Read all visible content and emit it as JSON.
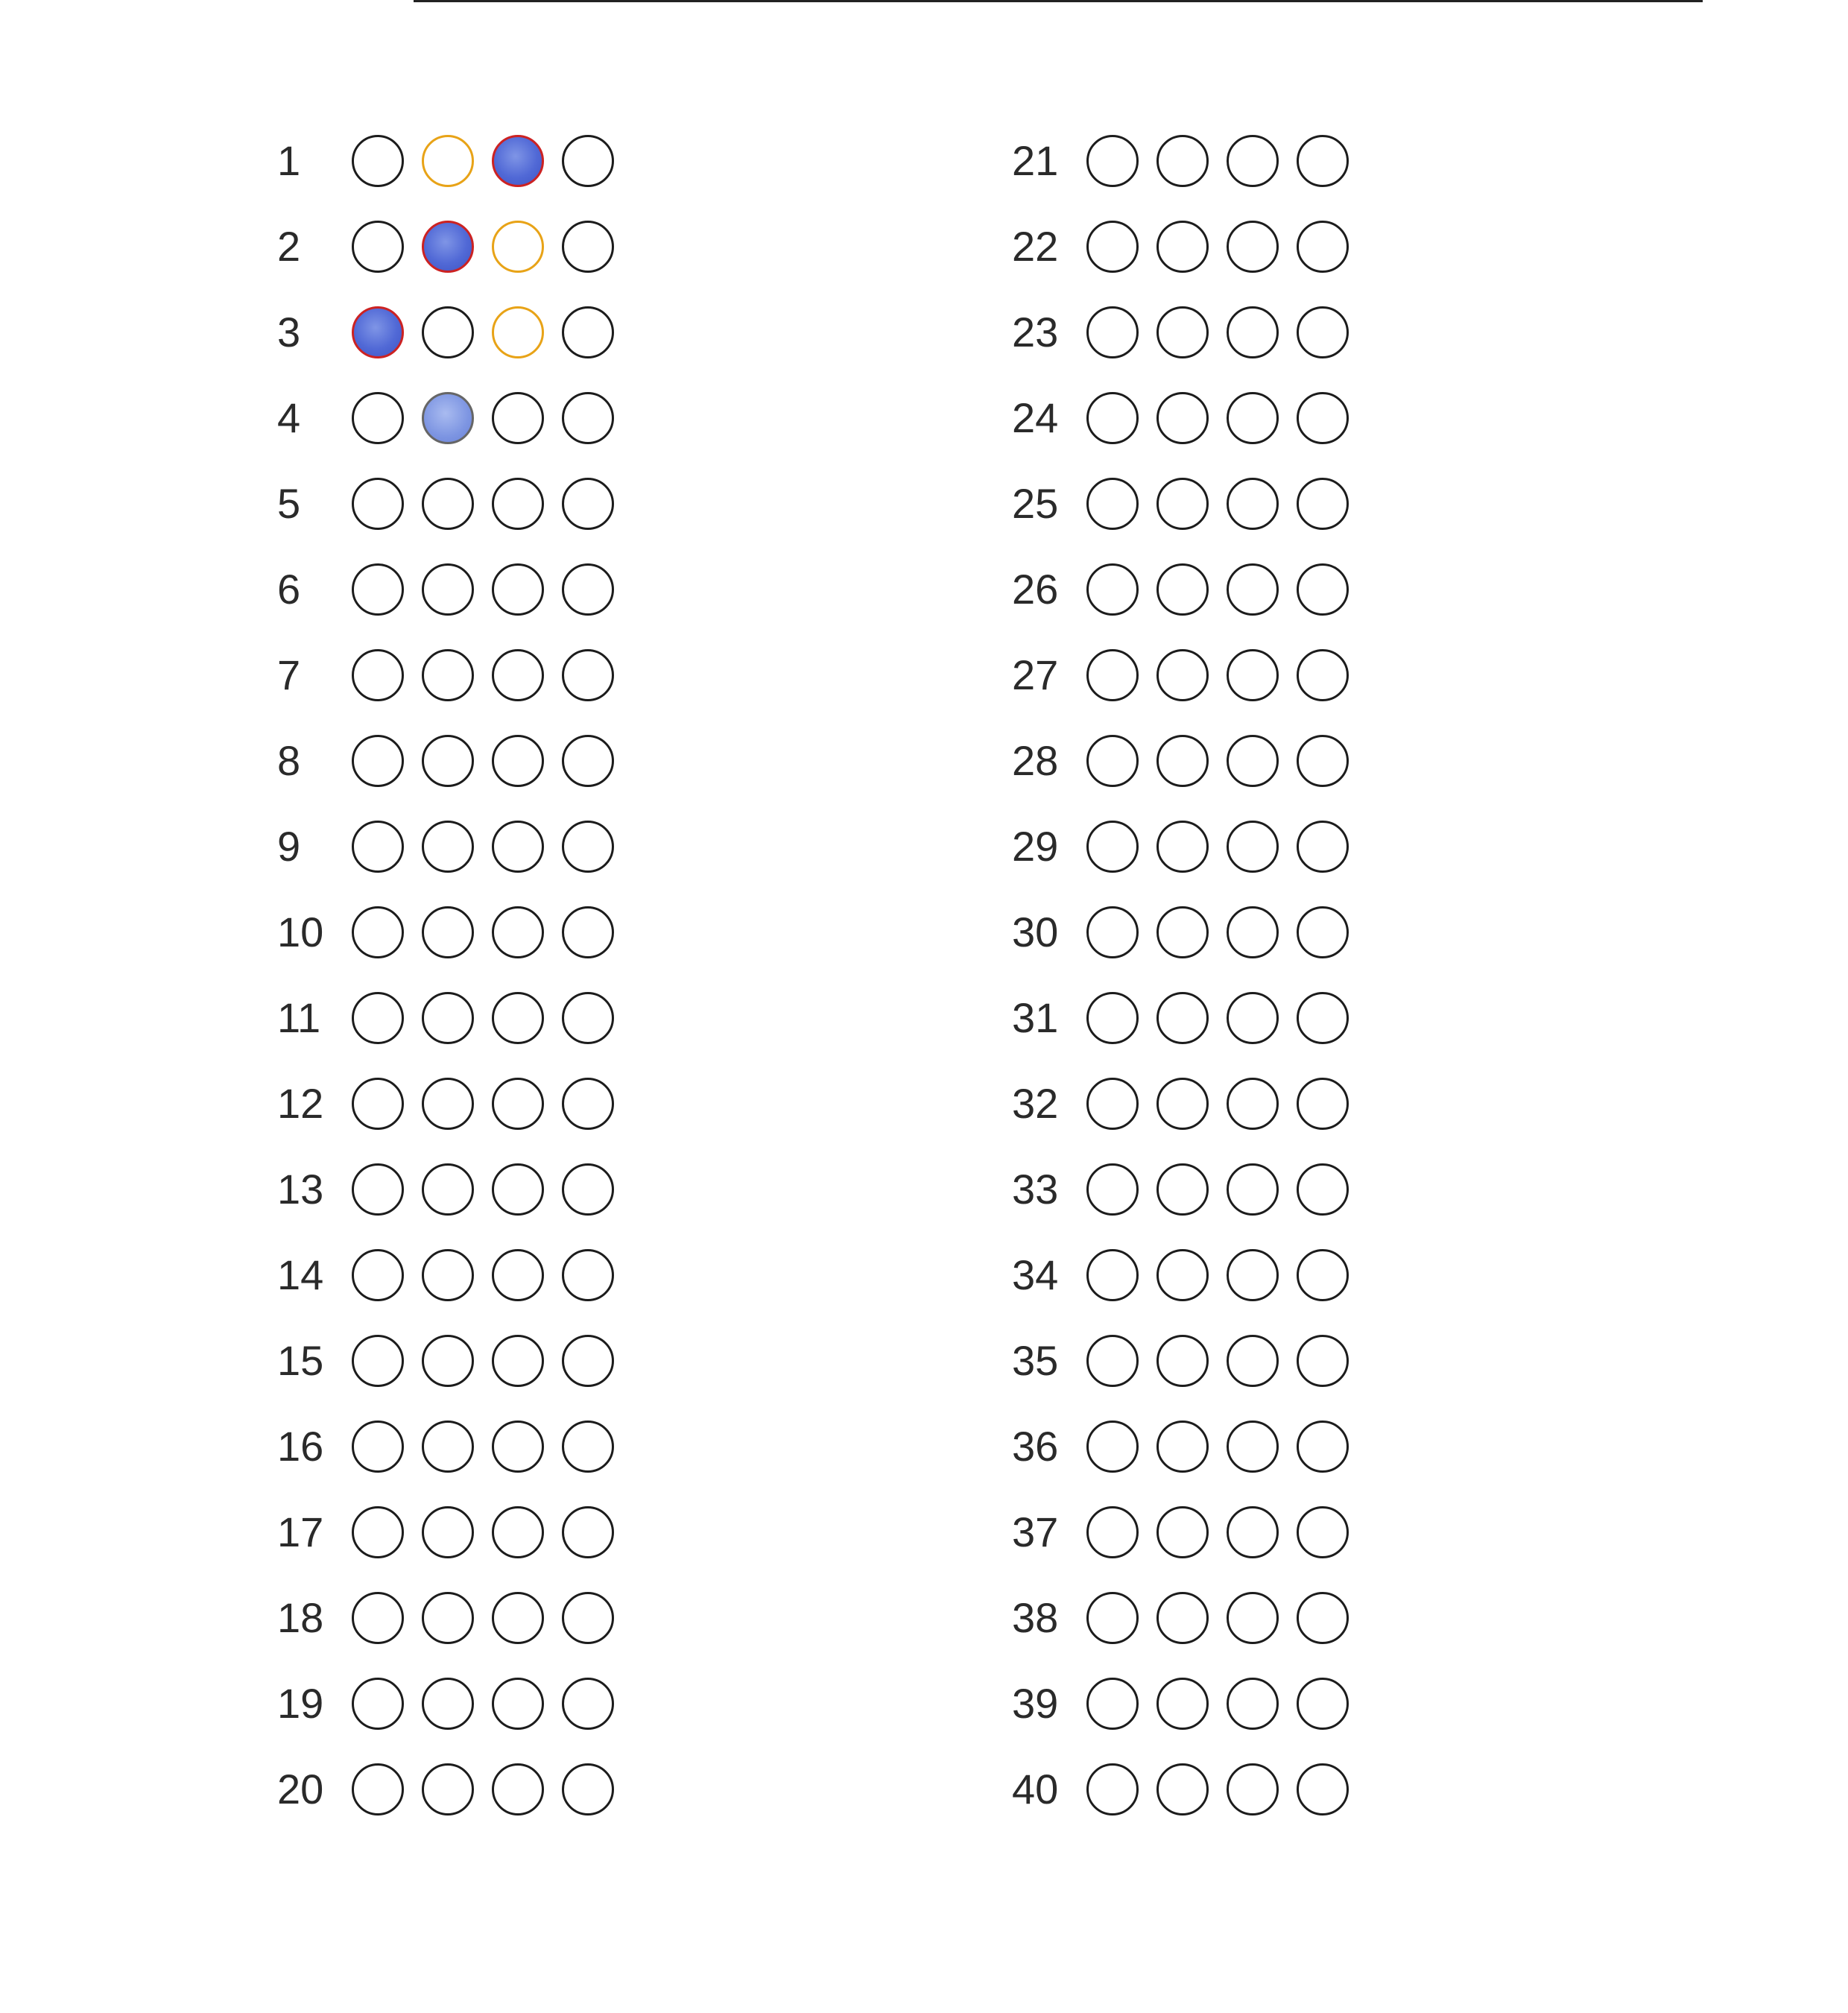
{
  "colors": {
    "ink": "#1c1c1c",
    "fill": "#5169d6",
    "fill_light": "#8aa0e6",
    "correct_mark": "#cc2222",
    "key_mark": "#e8a317"
  },
  "columns": [
    {
      "questions": [
        {
          "number": "1",
          "bubbles": [
            {
              "fill": "none",
              "mark": "none"
            },
            {
              "fill": "none",
              "mark": "key"
            },
            {
              "fill": "filled",
              "mark": "correct"
            },
            {
              "fill": "none",
              "mark": "none"
            }
          ]
        },
        {
          "number": "2",
          "bubbles": [
            {
              "fill": "none",
              "mark": "none"
            },
            {
              "fill": "filled",
              "mark": "correct"
            },
            {
              "fill": "none",
              "mark": "key"
            },
            {
              "fill": "none",
              "mark": "none"
            }
          ]
        },
        {
          "number": "3",
          "bubbles": [
            {
              "fill": "filled",
              "mark": "correct"
            },
            {
              "fill": "none",
              "mark": "none"
            },
            {
              "fill": "none",
              "mark": "key"
            },
            {
              "fill": "none",
              "mark": "none"
            }
          ]
        },
        {
          "number": "4",
          "bubbles": [
            {
              "fill": "none",
              "mark": "none"
            },
            {
              "fill": "filled-light",
              "mark": "none"
            },
            {
              "fill": "none",
              "mark": "none"
            },
            {
              "fill": "none",
              "mark": "none"
            }
          ]
        },
        {
          "number": "5",
          "bubbles": [
            {
              "fill": "none",
              "mark": "none"
            },
            {
              "fill": "none",
              "mark": "none"
            },
            {
              "fill": "none",
              "mark": "none"
            },
            {
              "fill": "none",
              "mark": "none"
            }
          ]
        },
        {
          "number": "6",
          "bubbles": [
            {
              "fill": "none",
              "mark": "none"
            },
            {
              "fill": "none",
              "mark": "none"
            },
            {
              "fill": "none",
              "mark": "none"
            },
            {
              "fill": "none",
              "mark": "none"
            }
          ]
        },
        {
          "number": "7",
          "bubbles": [
            {
              "fill": "none",
              "mark": "none"
            },
            {
              "fill": "none",
              "mark": "none"
            },
            {
              "fill": "none",
              "mark": "none"
            },
            {
              "fill": "none",
              "mark": "none"
            }
          ]
        },
        {
          "number": "8",
          "bubbles": [
            {
              "fill": "none",
              "mark": "none"
            },
            {
              "fill": "none",
              "mark": "none"
            },
            {
              "fill": "none",
              "mark": "none"
            },
            {
              "fill": "none",
              "mark": "none"
            }
          ]
        },
        {
          "number": "9",
          "bubbles": [
            {
              "fill": "none",
              "mark": "none"
            },
            {
              "fill": "none",
              "mark": "none"
            },
            {
              "fill": "none",
              "mark": "none"
            },
            {
              "fill": "none",
              "mark": "none"
            }
          ]
        },
        {
          "number": "10",
          "bubbles": [
            {
              "fill": "none",
              "mark": "none"
            },
            {
              "fill": "none",
              "mark": "none"
            },
            {
              "fill": "none",
              "mark": "none"
            },
            {
              "fill": "none",
              "mark": "none"
            }
          ]
        },
        {
          "number": "11",
          "bubbles": [
            {
              "fill": "none",
              "mark": "none"
            },
            {
              "fill": "none",
              "mark": "none"
            },
            {
              "fill": "none",
              "mark": "none"
            },
            {
              "fill": "none",
              "mark": "none"
            }
          ]
        },
        {
          "number": "12",
          "bubbles": [
            {
              "fill": "none",
              "mark": "none"
            },
            {
              "fill": "none",
              "mark": "none"
            },
            {
              "fill": "none",
              "mark": "none"
            },
            {
              "fill": "none",
              "mark": "none"
            }
          ]
        },
        {
          "number": "13",
          "bubbles": [
            {
              "fill": "none",
              "mark": "none"
            },
            {
              "fill": "none",
              "mark": "none"
            },
            {
              "fill": "none",
              "mark": "none"
            },
            {
              "fill": "none",
              "mark": "none"
            }
          ]
        },
        {
          "number": "14",
          "bubbles": [
            {
              "fill": "none",
              "mark": "none"
            },
            {
              "fill": "none",
              "mark": "none"
            },
            {
              "fill": "none",
              "mark": "none"
            },
            {
              "fill": "none",
              "mark": "none"
            }
          ]
        },
        {
          "number": "15",
          "bubbles": [
            {
              "fill": "none",
              "mark": "none"
            },
            {
              "fill": "none",
              "mark": "none"
            },
            {
              "fill": "none",
              "mark": "none"
            },
            {
              "fill": "none",
              "mark": "none"
            }
          ]
        },
        {
          "number": "16",
          "bubbles": [
            {
              "fill": "none",
              "mark": "none"
            },
            {
              "fill": "none",
              "mark": "none"
            },
            {
              "fill": "none",
              "mark": "none"
            },
            {
              "fill": "none",
              "mark": "none"
            }
          ]
        },
        {
          "number": "17",
          "bubbles": [
            {
              "fill": "none",
              "mark": "none"
            },
            {
              "fill": "none",
              "mark": "none"
            },
            {
              "fill": "none",
              "mark": "none"
            },
            {
              "fill": "none",
              "mark": "none"
            }
          ]
        },
        {
          "number": "18",
          "bubbles": [
            {
              "fill": "none",
              "mark": "none"
            },
            {
              "fill": "none",
              "mark": "none"
            },
            {
              "fill": "none",
              "mark": "none"
            },
            {
              "fill": "none",
              "mark": "none"
            }
          ]
        },
        {
          "number": "19",
          "bubbles": [
            {
              "fill": "none",
              "mark": "none"
            },
            {
              "fill": "none",
              "mark": "none"
            },
            {
              "fill": "none",
              "mark": "none"
            },
            {
              "fill": "none",
              "mark": "none"
            }
          ]
        },
        {
          "number": "20",
          "bubbles": [
            {
              "fill": "none",
              "mark": "none"
            },
            {
              "fill": "none",
              "mark": "none"
            },
            {
              "fill": "none",
              "mark": "none"
            },
            {
              "fill": "none",
              "mark": "none"
            }
          ]
        }
      ]
    },
    {
      "questions": [
        {
          "number": "21",
          "bubbles": [
            {
              "fill": "none",
              "mark": "none"
            },
            {
              "fill": "none",
              "mark": "none"
            },
            {
              "fill": "none",
              "mark": "none"
            },
            {
              "fill": "none",
              "mark": "none"
            }
          ]
        },
        {
          "number": "22",
          "bubbles": [
            {
              "fill": "none",
              "mark": "none"
            },
            {
              "fill": "none",
              "mark": "none"
            },
            {
              "fill": "none",
              "mark": "none"
            },
            {
              "fill": "none",
              "mark": "none"
            }
          ]
        },
        {
          "number": "23",
          "bubbles": [
            {
              "fill": "none",
              "mark": "none"
            },
            {
              "fill": "none",
              "mark": "none"
            },
            {
              "fill": "none",
              "mark": "none"
            },
            {
              "fill": "none",
              "mark": "none"
            }
          ]
        },
        {
          "number": "24",
          "bubbles": [
            {
              "fill": "none",
              "mark": "none"
            },
            {
              "fill": "none",
              "mark": "none"
            },
            {
              "fill": "none",
              "mark": "none"
            },
            {
              "fill": "none",
              "mark": "none"
            }
          ]
        },
        {
          "number": "25",
          "bubbles": [
            {
              "fill": "none",
              "mark": "none"
            },
            {
              "fill": "none",
              "mark": "none"
            },
            {
              "fill": "none",
              "mark": "none"
            },
            {
              "fill": "none",
              "mark": "none"
            }
          ]
        },
        {
          "number": "26",
          "bubbles": [
            {
              "fill": "none",
              "mark": "none"
            },
            {
              "fill": "none",
              "mark": "none"
            },
            {
              "fill": "none",
              "mark": "none"
            },
            {
              "fill": "none",
              "mark": "none"
            }
          ]
        },
        {
          "number": "27",
          "bubbles": [
            {
              "fill": "none",
              "mark": "none"
            },
            {
              "fill": "none",
              "mark": "none"
            },
            {
              "fill": "none",
              "mark": "none"
            },
            {
              "fill": "none",
              "mark": "none"
            }
          ]
        },
        {
          "number": "28",
          "bubbles": [
            {
              "fill": "none",
              "mark": "none"
            },
            {
              "fill": "none",
              "mark": "none"
            },
            {
              "fill": "none",
              "mark": "none"
            },
            {
              "fill": "none",
              "mark": "none"
            }
          ]
        },
        {
          "number": "29",
          "bubbles": [
            {
              "fill": "none",
              "mark": "none"
            },
            {
              "fill": "none",
              "mark": "none"
            },
            {
              "fill": "none",
              "mark": "none"
            },
            {
              "fill": "none",
              "mark": "none"
            }
          ]
        },
        {
          "number": "30",
          "bubbles": [
            {
              "fill": "none",
              "mark": "none"
            },
            {
              "fill": "none",
              "mark": "none"
            },
            {
              "fill": "none",
              "mark": "none"
            },
            {
              "fill": "none",
              "mark": "none"
            }
          ]
        },
        {
          "number": "31",
          "bubbles": [
            {
              "fill": "none",
              "mark": "none"
            },
            {
              "fill": "none",
              "mark": "none"
            },
            {
              "fill": "none",
              "mark": "none"
            },
            {
              "fill": "none",
              "mark": "none"
            }
          ]
        },
        {
          "number": "32",
          "bubbles": [
            {
              "fill": "none",
              "mark": "none"
            },
            {
              "fill": "none",
              "mark": "none"
            },
            {
              "fill": "none",
              "mark": "none"
            },
            {
              "fill": "none",
              "mark": "none"
            }
          ]
        },
        {
          "number": "33",
          "bubbles": [
            {
              "fill": "none",
              "mark": "none"
            },
            {
              "fill": "none",
              "mark": "none"
            },
            {
              "fill": "none",
              "mark": "none"
            },
            {
              "fill": "none",
              "mark": "none"
            }
          ]
        },
        {
          "number": "34",
          "bubbles": [
            {
              "fill": "none",
              "mark": "none"
            },
            {
              "fill": "none",
              "mark": "none"
            },
            {
              "fill": "none",
              "mark": "none"
            },
            {
              "fill": "none",
              "mark": "none"
            }
          ]
        },
        {
          "number": "35",
          "bubbles": [
            {
              "fill": "none",
              "mark": "none"
            },
            {
              "fill": "none",
              "mark": "none"
            },
            {
              "fill": "none",
              "mark": "none"
            },
            {
              "fill": "none",
              "mark": "none"
            }
          ]
        },
        {
          "number": "36",
          "bubbles": [
            {
              "fill": "none",
              "mark": "none"
            },
            {
              "fill": "none",
              "mark": "none"
            },
            {
              "fill": "none",
              "mark": "none"
            },
            {
              "fill": "none",
              "mark": "none"
            }
          ]
        },
        {
          "number": "37",
          "bubbles": [
            {
              "fill": "none",
              "mark": "none"
            },
            {
              "fill": "none",
              "mark": "none"
            },
            {
              "fill": "none",
              "mark": "none"
            },
            {
              "fill": "none",
              "mark": "none"
            }
          ]
        },
        {
          "number": "38",
          "bubbles": [
            {
              "fill": "none",
              "mark": "none"
            },
            {
              "fill": "none",
              "mark": "none"
            },
            {
              "fill": "none",
              "mark": "none"
            },
            {
              "fill": "none",
              "mark": "none"
            }
          ]
        },
        {
          "number": "39",
          "bubbles": [
            {
              "fill": "none",
              "mark": "none"
            },
            {
              "fill": "none",
              "mark": "none"
            },
            {
              "fill": "none",
              "mark": "none"
            },
            {
              "fill": "none",
              "mark": "none"
            }
          ]
        },
        {
          "number": "40",
          "bubbles": [
            {
              "fill": "none",
              "mark": "none"
            },
            {
              "fill": "none",
              "mark": "none"
            },
            {
              "fill": "none",
              "mark": "none"
            },
            {
              "fill": "none",
              "mark": "none"
            }
          ]
        }
      ]
    }
  ]
}
